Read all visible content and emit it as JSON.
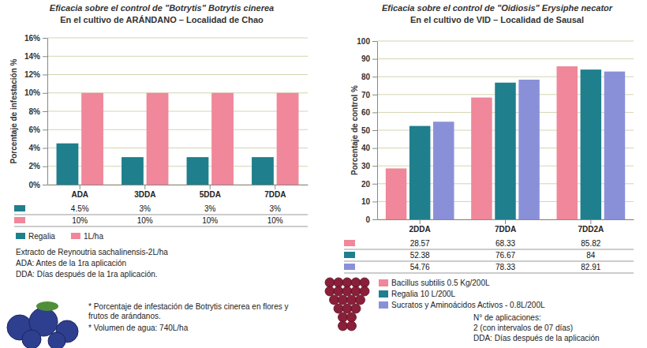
{
  "chart_data": [
    {
      "type": "bar",
      "title": "Eficacia sobre el control de \"Botrytis\" Botrytis cinerea",
      "subtitle": "En el cultivo de ARÁNDANO – Localidad de Chao",
      "y_label": "Porcentaje de infestación %",
      "categories": [
        "ADA",
        "3DDA",
        "5DDA",
        "7DDA"
      ],
      "series": [
        {
          "name": "Regalia",
          "color": "#1f7f8c",
          "values": [
            4.5,
            3,
            3,
            3
          ],
          "value_labels": [
            "4.5%",
            "3%",
            "3%",
            "3%"
          ]
        },
        {
          "name": "1L/ha",
          "color": "#f0879a",
          "values": [
            10,
            10,
            10,
            10
          ],
          "value_labels": [
            "10%",
            "10%",
            "10%",
            "10%"
          ]
        }
      ],
      "ylim": [
        0,
        16
      ],
      "yticks": [
        {
          "value": 0,
          "label": "0%"
        },
        {
          "value": 2,
          "label": "2%"
        },
        {
          "value": 4,
          "label": "4%"
        },
        {
          "value": 6,
          "label": "6%"
        },
        {
          "value": 8,
          "label": "8%"
        },
        {
          "value": 10,
          "label": "10%"
        },
        {
          "value": 12,
          "label": "12%"
        },
        {
          "value": 14,
          "label": "14%"
        },
        {
          "value": 16,
          "label": "16%"
        }
      ],
      "grid": true,
      "legend": "bottom",
      "data_labels": true
    },
    {
      "type": "bar",
      "title": "Eficacia sobre el control de \"Oidiosis\" Erysiphe necator",
      "subtitle": "En el cultivo de VID – Localidad de Sausal",
      "y_label": "Porcentaje de control %",
      "categories": [
        "2DDA",
        "7DDA",
        "7DD2A"
      ],
      "series": [
        {
          "name": "Bacillus subtilis 0.5 Kg/200L",
          "color": "#f0879a",
          "values": [
            28.57,
            68.33,
            85.82
          ]
        },
        {
          "name": "Regalia 10 L/200L",
          "color": "#1f7f8c",
          "values": [
            52.38,
            76.67,
            84
          ]
        },
        {
          "name": "Sucratos y Aminoácidos Activos - 0.8L/200L",
          "color": "#8a90d8",
          "values": [
            54.76,
            78.33,
            82.91
          ]
        }
      ],
      "ylim": [
        0,
        100
      ],
      "yticks": [
        0,
        10,
        20,
        30,
        40,
        50,
        60,
        70,
        80,
        90,
        100
      ],
      "grid": true,
      "legend": "bottom",
      "data_labels": true
    }
  ],
  "notes": {
    "left": [
      "Extracto de Reynoutria sachalinensis-2L/ha",
      "ADA: Antes de la 1ra aplicación",
      "DDA: Días después de la 1ra aplicación."
    ],
    "bottom_left": [
      "* Porcentaje de infestación de Botrytis cinerea en flores y frutos de arándanos.",
      "* Volumen de agua: 740L/ha"
    ],
    "right": [
      "N° de aplicaciones:",
      "2 (con intervalos de 07 días)",
      "DDA: Días después de la aplicación"
    ]
  }
}
